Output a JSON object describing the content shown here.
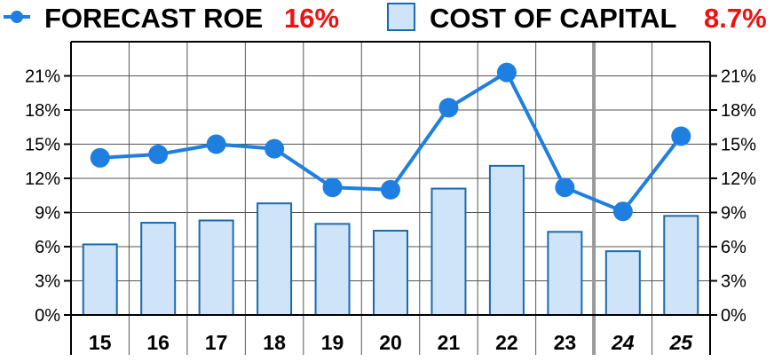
{
  "legend": {
    "roe_label": "FORECAST ROE",
    "roe_value": "16%",
    "cap_label": "COST OF CAPITAL",
    "cap_value": "8.7%"
  },
  "colors": {
    "line": "#1f7fe0",
    "bar_fill": "#cfe4f8",
    "bar_stroke": "#1a6ab0",
    "legend_value": "#ee1111",
    "grid": "#555555"
  },
  "chart_data": {
    "type": "bar",
    "categories": [
      "15",
      "16",
      "17",
      "18",
      "19",
      "20",
      "21",
      "22",
      "23",
      "24",
      "25"
    ],
    "forecast_categories": [
      "24",
      "25"
    ],
    "series": [
      {
        "name": "FORECAST ROE",
        "kind": "line",
        "values": [
          13.8,
          14.1,
          15.0,
          14.6,
          11.2,
          11.0,
          18.2,
          21.3,
          11.2,
          9.1,
          15.7
        ]
      },
      {
        "name": "COST OF CAPITAL",
        "kind": "bar",
        "values": [
          6.2,
          8.1,
          8.3,
          9.8,
          8.0,
          7.4,
          11.1,
          13.1,
          7.3,
          5.6,
          8.7
        ]
      }
    ],
    "yticks": [
      "0%",
      "3%",
      "6%",
      "9%",
      "12%",
      "15%",
      "18%",
      "21%"
    ],
    "ylim": [
      0,
      24
    ],
    "grid": true
  }
}
